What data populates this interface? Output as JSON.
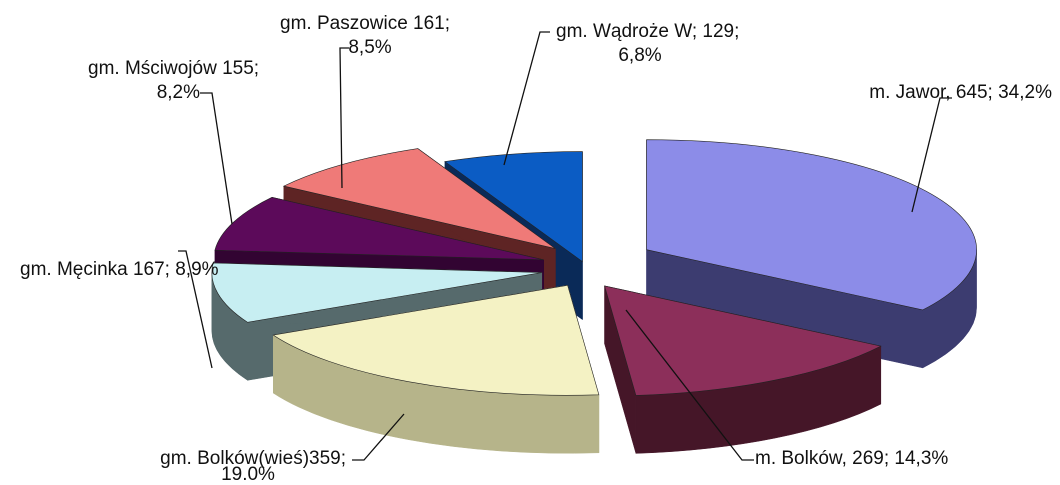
{
  "chart_data": {
    "type": "pie",
    "title": "",
    "style": "3d-exploded",
    "slices": [
      {
        "name": "m. Jawor",
        "value": 645,
        "label_line1": "m. Jawor, 645; 34,2%",
        "label_line2": "",
        "color": "#8c8ce8",
        "side_color": "#3c3c70"
      },
      {
        "name": "m. Bolków",
        "value": 269,
        "label_line1": "m. Bolków, 269; 14,3%",
        "label_line2": "",
        "color": "#8c2f5a",
        "side_color": "#451628"
      },
      {
        "name": "gm. Bolków(wieś)",
        "value": 359,
        "label_line1": "gm. Bolków(wieś)359;",
        "label_line2": "19.0%",
        "color": "#f4f2c4",
        "side_color": "#b6b48a"
      },
      {
        "name": "gm. Męcinka",
        "value": 167,
        "label_line1": "gm. Męcinka 167; 8,9%",
        "label_line2": "",
        "color": "#c7eef2",
        "side_color": "#566a6c"
      },
      {
        "name": "gm. Mściwojów",
        "value": 155,
        "label_line1": "gm. Mściwojów 155;",
        "label_line2": "8,2%",
        "color": "#5c0a5a",
        "side_color": "#320432"
      },
      {
        "name": "gm. Paszowice",
        "value": 161,
        "label_line1": "gm. Paszowice 161;",
        "label_line2": "8,5%",
        "color": "#ef7a78",
        "side_color": "#5e2424"
      },
      {
        "name": "gm. Wądroże W",
        "value": 129,
        "label_line1": "gm. Wądroże W; 129;",
        "label_line2": "6,8%",
        "color": "#0b5cc4",
        "side_color": "#0a2a58"
      }
    ]
  }
}
